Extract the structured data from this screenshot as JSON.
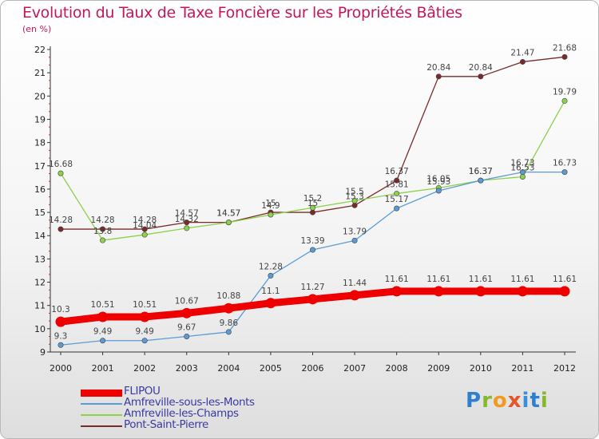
{
  "title": "Evolution du Taux de Taxe Foncière sur les Propriétés Bâties",
  "unit": "(en %)",
  "logo": {
    "text": "Proxiti",
    "colors": [
      "#2f7fcf",
      "#86b82e",
      "#f29a1e",
      "#e2562a",
      "#3b8fd8"
    ]
  },
  "chart_data": {
    "type": "line",
    "x": [
      "2000",
      "2001",
      "2002",
      "2003",
      "2004",
      "2005",
      "2006",
      "2007",
      "2008",
      "2009",
      "2010",
      "2011",
      "2012"
    ],
    "ylim": [
      9,
      22
    ],
    "yticks": [
      "9",
      "10",
      "11",
      "12",
      "13",
      "14",
      "15",
      "16",
      "17",
      "18",
      "19",
      "20",
      "21",
      "22"
    ],
    "grid": false,
    "legend_position": "bottom-left",
    "series": [
      {
        "name": "FLIPOU",
        "color": "#ee0000",
        "values": [
          10.3,
          10.51,
          10.51,
          10.67,
          10.88,
          11.1,
          11.27,
          11.44,
          11.61,
          11.61,
          11.61,
          11.61,
          11.61
        ],
        "labels": [
          "10.3",
          "10.51",
          "10.51",
          "10.67",
          "10.88",
          "11.1",
          "11.27",
          "11.44",
          "11.61",
          "11.61",
          "11.61",
          "11.61",
          "11.61"
        ]
      },
      {
        "name": "Amfreville-sous-les-Monts",
        "color": "#5b9bd5",
        "values": [
          9.3,
          9.49,
          9.49,
          9.67,
          9.86,
          12.28,
          13.39,
          13.79,
          15.17,
          15.93,
          16.37,
          16.73,
          16.73
        ],
        "labels": [
          "9.3",
          "9.49",
          "9.49",
          "9.67",
          "9.86",
          "12.28",
          "13.39",
          "13.79",
          "15.17",
          "15.93",
          "16.37",
          "16.73",
          "16.73"
        ]
      },
      {
        "name": "Amfreville-les-Champs",
        "color": "#8bd14a",
        "values": [
          16.68,
          13.8,
          14.04,
          14.32,
          14.57,
          14.9,
          15.2,
          15.5,
          15.81,
          16.05,
          16.37,
          16.53,
          19.79
        ],
        "labels": [
          "16.68",
          "13.8",
          "14.04",
          "14.32",
          "14.57",
          "14.9",
          "15.2",
          "15.5",
          "15.81",
          "16.05",
          "16.37",
          "16.53",
          "19.79"
        ]
      },
      {
        "name": "Pont-Saint-Pierre",
        "color": "#7a2a2a",
        "values": [
          14.28,
          14.28,
          14.28,
          14.57,
          14.57,
          15,
          15,
          15.3,
          16.37,
          20.84,
          20.84,
          21.47,
          21.68
        ],
        "labels": [
          "14.28",
          "14.28",
          "14.28",
          "14.57",
          "14.57",
          "15",
          "15",
          "15.3",
          "16.37",
          "20.84",
          "20.84",
          "21.47",
          "21.68"
        ]
      }
    ]
  }
}
